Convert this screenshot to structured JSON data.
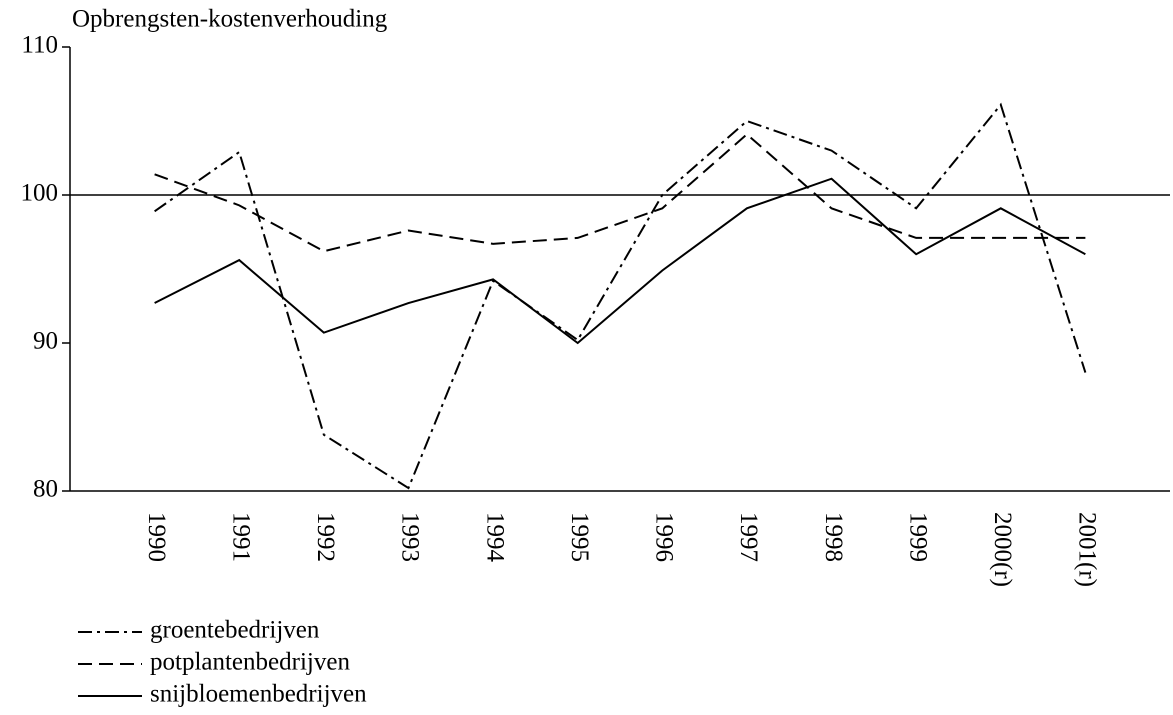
{
  "chart_data": {
    "type": "line",
    "y_label": "Opbrengsten-kostenverhouding",
    "categories": [
      "1990",
      "1991",
      "1992",
      "1993",
      "1994",
      "1995",
      "1996",
      "1997",
      "1998",
      "1999",
      "2000(r)",
      "2001(r)"
    ],
    "series": [
      {
        "name": "groentebedrijven",
        "color": "#000000",
        "linestyle": "dashdot",
        "values": [
          98.9,
          102.9,
          83.8,
          80.2,
          94.2,
          90.2,
          100.0,
          105.0,
          103.0,
          99.1,
          106.1,
          88.0
        ]
      },
      {
        "name": "potplantenbedrijven",
        "color": "#000000",
        "linestyle": "dashed",
        "values": [
          101.4,
          99.3,
          96.2,
          97.6,
          96.7,
          97.1,
          99.1,
          104.1,
          99.1,
          97.1,
          97.1,
          97.1
        ]
      },
      {
        "name": "snijbloemenbedrijven",
        "color": "#000000",
        "linestyle": "solid",
        "values": [
          92.7,
          95.6,
          90.7,
          92.7,
          94.3,
          90.0,
          94.9,
          99.1,
          101.1,
          96.0,
          99.1,
          96.0
        ]
      }
    ],
    "reference_line": 100,
    "ylim": [
      80,
      110
    ],
    "yticks": [
      80,
      90,
      100,
      110
    ],
    "legend": "bottom-left"
  }
}
